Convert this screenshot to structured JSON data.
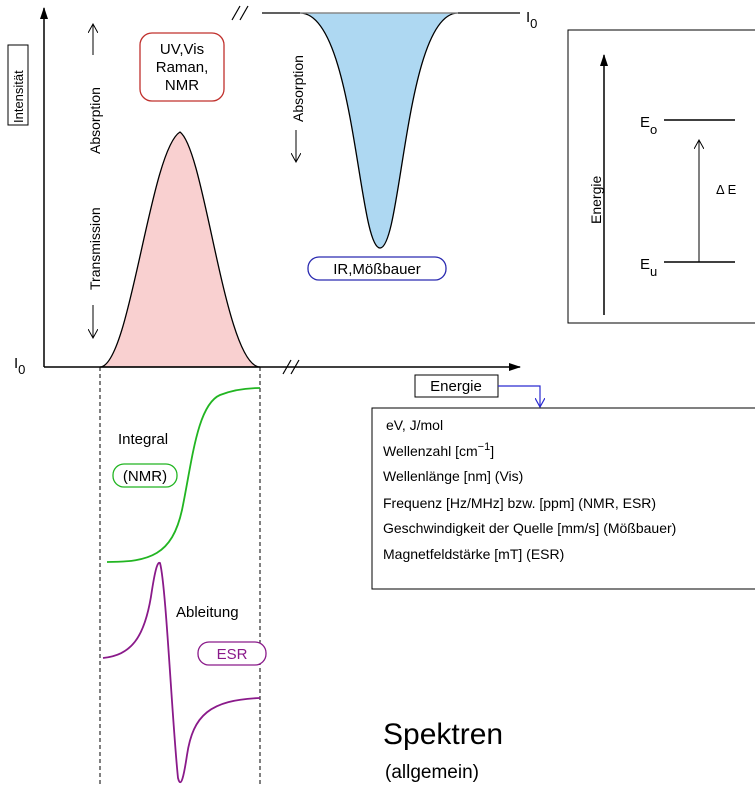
{
  "axes": {
    "y_label": "Intensität",
    "x_label": "Energie",
    "i0_left": "I",
    "i0_left_sub": "0",
    "i0_right": "I",
    "i0_right_sub": "0",
    "axis_break": "//"
  },
  "direction_labels": {
    "absorption_up": "Absorption",
    "transmission_down": "Transmission",
    "absorption_down": "Absorption"
  },
  "techniques": {
    "emission_box": [
      "UV,Vis",
      "Raman,",
      "NMR"
    ],
    "absorption_box": "IR,Mößbauer",
    "integral_label": "Integral",
    "integral_box": "(NMR)",
    "derivative_label": "Ableitung",
    "derivative_box": "ESR"
  },
  "energy_levels": {
    "axis_label": "Energie",
    "upper": "E",
    "upper_sub": "o",
    "lower": "E",
    "lower_sub": "u",
    "delta": "Δ E"
  },
  "units_box": {
    "lines": [
      {
        "text": "eV, J/mol"
      },
      {
        "text": "Wellenzahl  [cm",
        "sup": "−1",
        "after": "]"
      },
      {
        "text": "Wellenlänge  [nm] (Vis)"
      },
      {
        "text": "Frequenz   [Hz/MHz] bzw. [ppm] (NMR, ESR)"
      },
      {
        "text": "Geschwindigkeit der Quelle [mm/s] (Mößbauer)"
      },
      {
        "text": "Magnetfeldstärke [mT] (ESR)"
      }
    ]
  },
  "title": {
    "main": "Spektren",
    "sub": "(allgemein)"
  },
  "colors": {
    "peak_fill": "#f9d0d0",
    "dip_fill": "#aed8f2",
    "emission_box_stroke": "#c0302c",
    "absorption_box_stroke": "#2a2ab0",
    "integral_color": "#22b522",
    "derivative_color": "#8a1a8a",
    "arrow_blue": "#2a2ad0"
  }
}
